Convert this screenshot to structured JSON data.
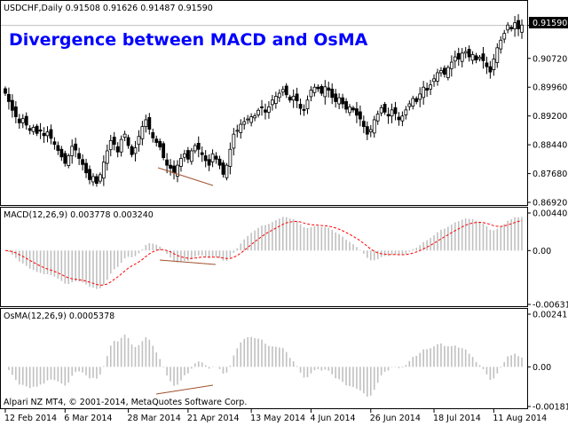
{
  "title": "Divergence between MACD and OsMA",
  "symbol_header": "USDCHF,Daily  0.91508 0.91626 0.91487 0.91590",
  "macd_header": "MACD(12,26,9) 0.003778 0.003240",
  "osma_header": "OsMA(12,26,9) 0.0005378",
  "copyright": "Alpari NZ MT4, © 2001-2014, MetaQuotes Software Corp.",
  "current_price_label": "0.91590",
  "colors": {
    "background": "#ffffff",
    "candle": "#000000",
    "histogram": "#c0c0c0",
    "signal_line": "#ff0000",
    "divergence_line": "#a0522d",
    "title": "#0000ff",
    "current_price_line": "#c0c0c0"
  },
  "chart_data": [
    {
      "type": "candlestick",
      "pane": "price",
      "symbol": "USDCHF",
      "timeframe": "Daily",
      "ylim": [
        0.8692,
        0.9198
      ],
      "y_ticks": [
        "0.91590",
        "0.90720",
        "0.89960",
        "0.89200",
        "0.88440",
        "0.87680",
        "0.86920"
      ],
      "x_ticks": [
        "12 Feb 2014",
        "6 Mar 2014",
        "28 Mar 2014",
        "21 Apr 2014",
        "13 May 2014",
        "4 Jun 2014",
        "26 Jun 2014",
        "18 Jul 2014",
        "11 Aug 2014"
      ],
      "close": [
        0.898,
        0.8958,
        0.8935,
        0.8918,
        0.8902,
        0.8913,
        0.8896,
        0.8882,
        0.889,
        0.8874,
        0.888,
        0.8868,
        0.8878,
        0.8861,
        0.8845,
        0.8829,
        0.8812,
        0.8795,
        0.8815,
        0.884,
        0.883,
        0.8808,
        0.8792,
        0.877,
        0.8752,
        0.876,
        0.8742,
        0.8765,
        0.8798,
        0.8828,
        0.8855,
        0.8845,
        0.8825,
        0.8858,
        0.8872,
        0.8842,
        0.8818,
        0.8836,
        0.8866,
        0.8892,
        0.891,
        0.8885,
        0.8862,
        0.885,
        0.8838,
        0.881,
        0.879,
        0.8782,
        0.877,
        0.879,
        0.8808,
        0.882,
        0.8806,
        0.8828,
        0.8842,
        0.8832,
        0.8818,
        0.8802,
        0.879,
        0.882,
        0.8806,
        0.879,
        0.8766,
        0.879,
        0.8832,
        0.8872,
        0.8882,
        0.8898,
        0.8905,
        0.8912,
        0.8918,
        0.892,
        0.8935,
        0.8942,
        0.893,
        0.8944,
        0.8962,
        0.8972,
        0.898,
        0.899,
        0.8976,
        0.8962,
        0.8972,
        0.896,
        0.894,
        0.8936,
        0.8962,
        0.8988,
        0.8996,
        0.8992,
        0.898,
        0.8997,
        0.8988,
        0.8969,
        0.8958,
        0.8968,
        0.8952,
        0.8938,
        0.8944,
        0.8936,
        0.8922,
        0.8912,
        0.8892,
        0.8872,
        0.8884,
        0.891,
        0.8925,
        0.8942,
        0.893,
        0.892,
        0.8936,
        0.8926,
        0.891,
        0.892,
        0.8936,
        0.8952,
        0.8966,
        0.8958,
        0.8978,
        0.8996,
        0.8988,
        0.9002,
        0.9018,
        0.9034,
        0.904,
        0.903,
        0.9048,
        0.9062,
        0.9076,
        0.907,
        0.9086,
        0.909,
        0.9076,
        0.9082,
        0.9068,
        0.9075,
        0.9066,
        0.905,
        0.9036,
        0.907,
        0.91,
        0.912,
        0.9138,
        0.916,
        0.915,
        0.9166,
        0.915,
        0.916
      ]
    },
    {
      "type": "bar+line",
      "pane": "MACD(12,26,9)",
      "ylim": [
        -0.006312,
        0.004402
      ],
      "y_ticks": [
        "0.004402",
        "0.00",
        "-0.006312"
      ],
      "series": [
        {
          "name": "MACD",
          "style": "histogram"
        },
        {
          "name": "Signal",
          "style": "dashed-line"
        }
      ]
    },
    {
      "type": "bar",
      "pane": "OsMA(12,26,9)",
      "ylim": [
        -0.001813,
        0.002411
      ],
      "y_ticks": [
        "0.002411",
        "0.00",
        "-0.001813"
      ],
      "series": [
        {
          "name": "OsMA",
          "style": "histogram"
        }
      ]
    }
  ]
}
